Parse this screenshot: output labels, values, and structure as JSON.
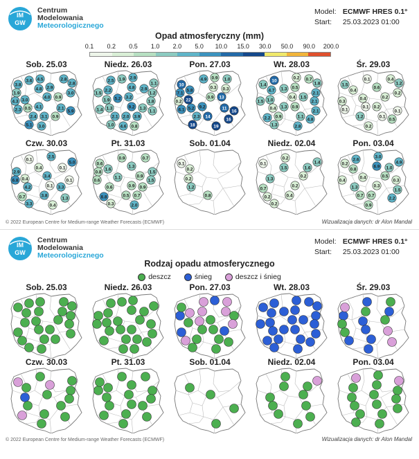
{
  "logo": {
    "line1": "Centrum",
    "line2": "Modelowania",
    "line3": "Meteorologicznego",
    "mark_text": "IMGW"
  },
  "model": {
    "model_label": "Model:",
    "model_value": "ECMWF HRES 0.1°",
    "start_label": "Start:",
    "start_value": "25.03.2023 01:00"
  },
  "top_panel": {
    "title": "Opad atmosferyczny (mm)",
    "scale_ticks": [
      "0.1",
      "0.2",
      "0.5",
      "1.0",
      "2.0",
      "5.0",
      "10.0",
      "15.0",
      "30.0",
      "50.0",
      "90.0",
      "200.0"
    ],
    "scale_colors": [
      "#eef6ea",
      "#d9efd6",
      "#b7e0c2",
      "#8ccbc1",
      "#5fb5c9",
      "#3b93bf",
      "#226aa8",
      "#14488b",
      "#f0e96c",
      "#f2b53b",
      "#e0502d"
    ],
    "days": [
      {
        "label": "Sob. 25.03",
        "values": [
          "3.8",
          "3.6",
          "4.5",
          "2.8",
          "2.8",
          "1.9",
          "4.8",
          "2.9",
          "3.0",
          "4.3",
          "3.0",
          "4.0",
          "0.9",
          "2.3",
          "0.5",
          "4.1",
          "2.1",
          "5.9",
          "2.4",
          "3.1",
          "0.9",
          "5.1",
          "3.0"
        ]
      },
      {
        "label": "Niedz. 26.03",
        "values": [
          "2.5",
          "1.9",
          "2.9",
          "1.1",
          "1.5",
          "2.2",
          "4.8",
          "2.9",
          "1.2",
          "1.9",
          "5.2",
          "3.2",
          "1.8",
          "1.4",
          "1.3",
          "9.2",
          "1.3",
          "1.1",
          "2.1",
          "2.0",
          "3.9",
          "1.0",
          "4.6",
          "0.8"
        ]
      },
      {
        "label": "Pon. 27.03",
        "values": [
          "4.9",
          "0.9",
          "1.0",
          "7.1",
          "5.8",
          "0.3",
          "0.3",
          "0.2",
          "22",
          "0.9",
          "13",
          "6.1",
          "5.2",
          "9.2",
          "11",
          "16",
          "2.3",
          "14",
          "16",
          "18",
          "19",
          "10"
        ]
      },
      {
        "label": "Wt. 28.03",
        "values": [
          "0.2",
          "0.7",
          "1.8",
          "4.7",
          "1.3",
          "0.5",
          "2.1",
          "1.5",
          "1.0",
          "0.4",
          "1.5",
          "2.1",
          "0.4",
          "1.3",
          "0.9",
          "2.1",
          "2.2",
          "0.9",
          "1.1",
          "4.8",
          "1.3",
          "2.8",
          "1.4",
          "10"
        ]
      },
      {
        "label": "Śr. 29.03",
        "values": [
          "0.4",
          "1.2",
          "0.4",
          "0.6",
          "0.2",
          "0.3",
          "0.4",
          "0.2",
          "0.1",
          "0.1",
          "0.2",
          "0.1",
          "1.2",
          "0.1",
          "0.5",
          "0.2",
          "1.5",
          "0.1"
        ]
      },
      {
        "label": "Czw. 30.03",
        "values": [
          "5.0",
          "2.9",
          "0.4",
          "0.1",
          "6.8",
          "0.4",
          "3.4",
          "0.1",
          "4.2",
          "0.1",
          "3.3",
          "0.7",
          "3.8",
          "1.3",
          "3.3",
          "0.4",
          "0.1",
          "2.5"
        ]
      },
      {
        "label": "Pt. 31.03",
        "values": [
          "0.8",
          "1.6",
          "1.3",
          "1.5",
          "0.6",
          "1.1",
          "0.9",
          "1.5",
          "0.6",
          "0.9",
          "0.9",
          "8.8",
          "0.5",
          "0.7",
          "0.3",
          "2.0",
          "0.6",
          "0.9",
          "0.7"
        ]
      },
      {
        "label": "Sob. 01.04",
        "values": [
          "0.2",
          "0.2",
          "1.2",
          "0.8",
          "0.1"
        ]
      },
      {
        "label": "Niedz. 02.04",
        "values": [
          "1.5",
          "1.6",
          "1.3",
          "0.2",
          "0.7",
          "0.2",
          "0.2",
          "0.4",
          "0.2",
          "0.1",
          "0.2",
          "1.4"
        ]
      },
      {
        "label": "Pon. 03.04",
        "values": [
          "6.9",
          "1.0",
          "0.4",
          "0.4",
          "0.5",
          "0.3",
          "1.3",
          "0.3",
          "1.5",
          "0.7",
          "0.7",
          "2.2",
          "0.9",
          "0.2",
          "2.6",
          "3.0",
          "4.9",
          "0.8"
        ]
      }
    ],
    "footer_left": "© 2022 European Centre for Medium-range Weather Forecasts (ECMWF)",
    "footer_right": "Wizualizacja danych: dr Alon Mandal"
  },
  "bottom_panel": {
    "title": "Rodzaj opadu atmosferycznego",
    "legend": [
      {
        "label": "deszcz",
        "color": "#4caf50"
      },
      {
        "label": "śnieg",
        "color": "#2c5fd6"
      },
      {
        "label": "deszcz i śnieg",
        "color": "#d9a0d9"
      }
    ],
    "days": [
      {
        "label": "Sob. 25.03",
        "types": [
          "r",
          "r",
          "r",
          "r",
          "r",
          "r",
          "r",
          "r",
          "r",
          "r",
          "r",
          "r",
          "r",
          "r",
          "r",
          "r",
          "r",
          "r",
          "r",
          "r",
          "r",
          "r"
        ]
      },
      {
        "label": "Niedz. 26.03",
        "types": [
          "r",
          "r",
          "r",
          "r",
          "r",
          "r",
          "r",
          "r",
          "r",
          "r",
          "r",
          "r",
          "r",
          "r",
          "r",
          "r",
          "r",
          "r",
          "r",
          "r",
          "r",
          "r",
          "r"
        ]
      },
      {
        "label": "Pon. 27.03",
        "types": [
          "m",
          "s",
          "m",
          "s",
          "m",
          "m",
          "m",
          "r",
          "r",
          "m",
          "r",
          "m",
          "s",
          "r",
          "r",
          "s",
          "m",
          "r",
          "r",
          "r",
          "r",
          "r",
          "r"
        ]
      },
      {
        "label": "Wt. 28.03",
        "types": [
          "s",
          "s",
          "s",
          "s",
          "s",
          "s",
          "s",
          "s",
          "s",
          "s",
          "s",
          "s",
          "s",
          "s",
          "s",
          "s",
          "s",
          "s",
          "s",
          "s",
          "s",
          "s",
          "s",
          "s"
        ]
      },
      {
        "label": "Śr. 29.03",
        "types": [
          "r",
          "s",
          "r",
          "s",
          "r",
          "s",
          "r",
          "r",
          "s",
          "m",
          "s",
          "s",
          "m",
          "s",
          "m",
          "s"
        ]
      },
      {
        "label": "Czw. 30.03",
        "types": [
          "r",
          "r",
          "m",
          "r",
          "s",
          "r",
          "r",
          "r",
          "r",
          "m",
          "r",
          "r",
          "r",
          "m",
          "r"
        ]
      },
      {
        "label": "Pt. 31.03",
        "types": [
          "r",
          "r",
          "r",
          "r",
          "r",
          "r",
          "r",
          "r",
          "r",
          "r",
          "r",
          "r",
          "r",
          "r",
          "r",
          "r",
          "r"
        ]
      },
      {
        "label": "Sob. 01.04",
        "types": [
          "r",
          "r",
          "r",
          "r"
        ]
      },
      {
        "label": "Niedz. 02.04",
        "types": [
          "r",
          "r",
          "r",
          "r",
          "r",
          "r",
          "r",
          "r",
          "r",
          "r",
          "m"
        ]
      },
      {
        "label": "Pon. 03.04",
        "types": [
          "r",
          "r",
          "r",
          "r",
          "r",
          "r",
          "r",
          "r",
          "r",
          "r",
          "r",
          "r",
          "m",
          "r",
          "m",
          "r"
        ]
      }
    ],
    "footer_left": "© 2022 European Centre for Medium-range Weather Forecasts (ECMWF)",
    "footer_right": "Wizualizacja danych: dr Alon Mandal"
  }
}
